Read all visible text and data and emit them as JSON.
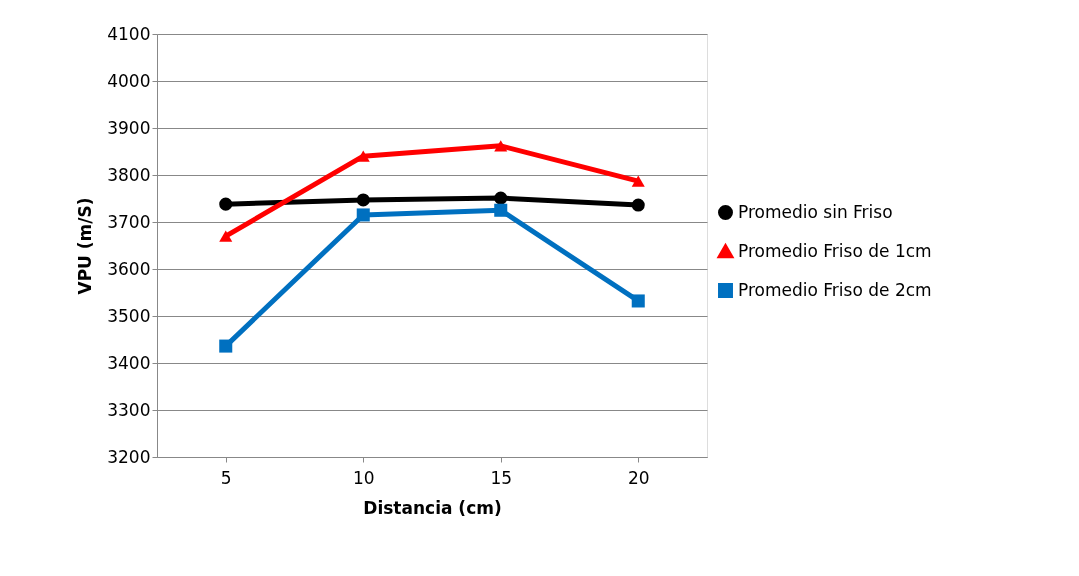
{
  "chart_data": {
    "type": "line",
    "xlabel": "Distancia (cm)",
    "ylabel": "VPU (m/S)",
    "categories": [
      "5",
      "10",
      "15",
      "20"
    ],
    "series": [
      {
        "name": "Promedio sin Friso",
        "color": "#000000",
        "marker": "circle",
        "values": [
          3738,
          3747,
          3751,
          3736
        ]
      },
      {
        "name": "Promedio Friso de 1cm",
        "color": "#ff0000",
        "marker": "triangle",
        "values": [
          3670,
          3840,
          3862,
          3787
        ]
      },
      {
        "name": "Promedio Friso de 2cm",
        "color": "#0070c0",
        "marker": "square",
        "values": [
          3436,
          3715,
          3725,
          3532
        ]
      }
    ],
    "ylim": [
      3200,
      4100
    ],
    "yticks": [
      3200,
      3300,
      3400,
      3500,
      3600,
      3700,
      3800,
      3900,
      4000,
      4100
    ],
    "grid": "y",
    "legend": "right",
    "line_style": "solid"
  }
}
